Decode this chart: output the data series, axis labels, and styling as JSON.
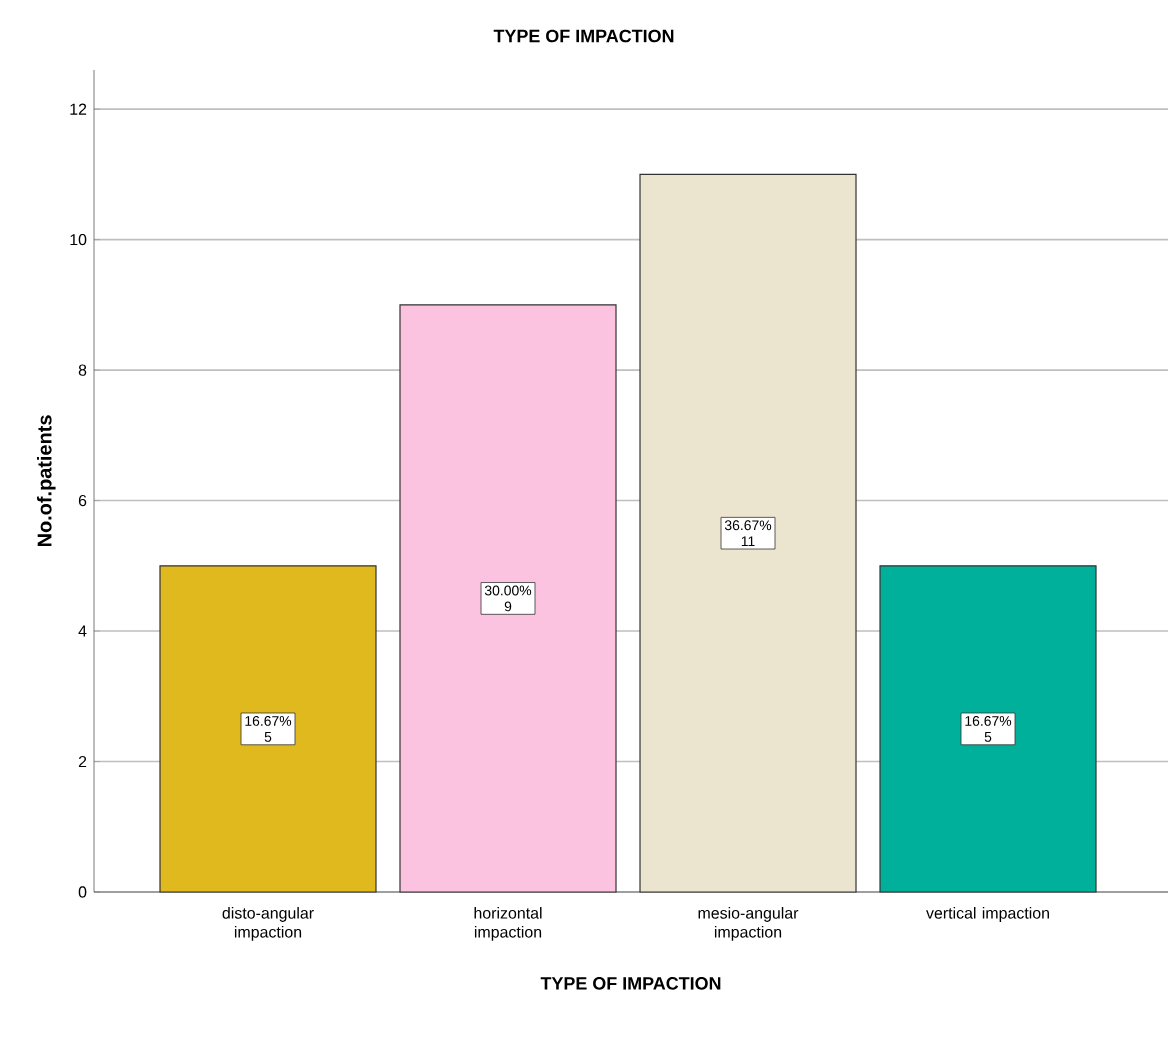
{
  "chart_data": {
    "type": "bar",
    "title": "TYPE OF IMPACTION",
    "xlabel": "TYPE OF IMPACTION",
    "ylabel": "No.of.patients",
    "categories": [
      "disto-angular impaction",
      "horizontal impaction",
      "mesio-angular impaction",
      "vertical impaction"
    ],
    "values": [
      5,
      9,
      11,
      5
    ],
    "colors": [
      "#e0b91f",
      "#fcc3e0",
      "#ebe4cf",
      "#00b09b"
    ],
    "value_labels": [
      "16.67% 5",
      "30.00% 9",
      "36.67% 11",
      "16.67% 5"
    ],
    "ylim": [
      0,
      12.6
    ],
    "yticks": [
      0,
      2,
      4,
      6,
      8,
      10,
      12
    ],
    "grid": "y"
  }
}
